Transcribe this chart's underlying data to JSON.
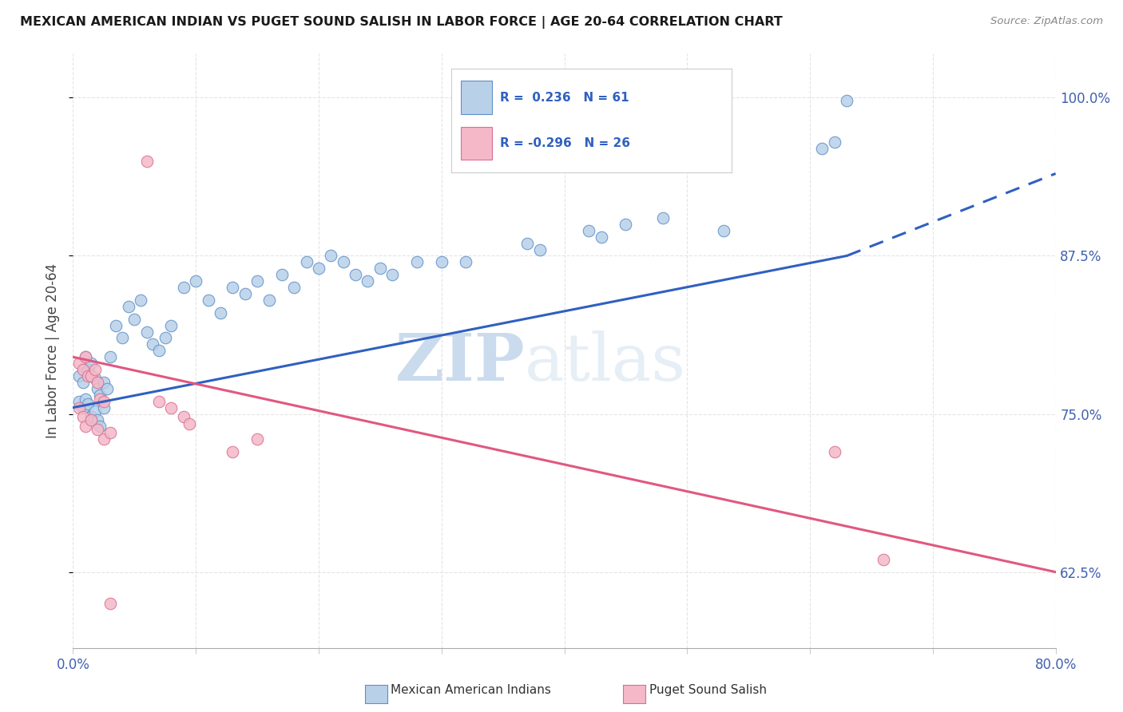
{
  "title": "MEXICAN AMERICAN INDIAN VS PUGET SOUND SALISH IN LABOR FORCE | AGE 20-64 CORRELATION CHART",
  "source": "Source: ZipAtlas.com",
  "ylabel": "In Labor Force | Age 20-64",
  "xlim": [
    0.0,
    0.8
  ],
  "ylim": [
    0.565,
    1.035
  ],
  "xticks": [
    0.0,
    0.1,
    0.2,
    0.3,
    0.4,
    0.5,
    0.6,
    0.7,
    0.8
  ],
  "yticks_right": [
    0.625,
    0.75,
    0.875,
    1.0
  ],
  "yticklabels_right": [
    "62.5%",
    "75.0%",
    "87.5%",
    "100.0%"
  ],
  "blue_face_color": "#b8d0e8",
  "blue_edge_color": "#6090c8",
  "pink_face_color": "#f4b8c8",
  "pink_edge_color": "#d87090",
  "blue_line_color": "#3060c0",
  "pink_line_color": "#e05880",
  "R_blue": 0.236,
  "N_blue": 61,
  "R_pink": -0.296,
  "N_pink": 26,
  "legend_label_blue": "Mexican American Indians",
  "legend_label_pink": "Puget Sound Salish",
  "watermark_zip": "ZIP",
  "watermark_atlas": "atlas",
  "blue_scatter_x": [
    0.005,
    0.008,
    0.01,
    0.012,
    0.015,
    0.018,
    0.02,
    0.022,
    0.025,
    0.028,
    0.005,
    0.008,
    0.01,
    0.012,
    0.015,
    0.018,
    0.02,
    0.022,
    0.025,
    0.03,
    0.035,
    0.04,
    0.045,
    0.05,
    0.055,
    0.06,
    0.065,
    0.07,
    0.075,
    0.08,
    0.09,
    0.1,
    0.11,
    0.12,
    0.13,
    0.14,
    0.15,
    0.16,
    0.17,
    0.18,
    0.19,
    0.2,
    0.21,
    0.22,
    0.23,
    0.24,
    0.25,
    0.26,
    0.3,
    0.32,
    0.38,
    0.42,
    0.43,
    0.53,
    0.61,
    0.62,
    0.63,
    0.37,
    0.28,
    0.45,
    0.48
  ],
  "blue_scatter_y": [
    0.78,
    0.775,
    0.795,
    0.785,
    0.79,
    0.778,
    0.77,
    0.765,
    0.775,
    0.77,
    0.76,
    0.755,
    0.762,
    0.758,
    0.748,
    0.752,
    0.745,
    0.74,
    0.755,
    0.795,
    0.82,
    0.81,
    0.835,
    0.825,
    0.84,
    0.815,
    0.805,
    0.8,
    0.81,
    0.82,
    0.85,
    0.855,
    0.84,
    0.83,
    0.85,
    0.845,
    0.855,
    0.84,
    0.86,
    0.85,
    0.87,
    0.865,
    0.875,
    0.87,
    0.86,
    0.855,
    0.865,
    0.86,
    0.87,
    0.87,
    0.88,
    0.895,
    0.89,
    0.895,
    0.96,
    0.965,
    0.998,
    0.885,
    0.87,
    0.9,
    0.905
  ],
  "pink_scatter_x": [
    0.005,
    0.008,
    0.01,
    0.012,
    0.015,
    0.018,
    0.02,
    0.022,
    0.025,
    0.005,
    0.008,
    0.01,
    0.015,
    0.02,
    0.025,
    0.03,
    0.06,
    0.07,
    0.08,
    0.09,
    0.095,
    0.13,
    0.15,
    0.62,
    0.66,
    0.03
  ],
  "pink_scatter_y": [
    0.79,
    0.785,
    0.795,
    0.78,
    0.78,
    0.785,
    0.775,
    0.762,
    0.76,
    0.755,
    0.748,
    0.74,
    0.745,
    0.738,
    0.73,
    0.735,
    0.95,
    0.76,
    0.755,
    0.748,
    0.742,
    0.72,
    0.73,
    0.72,
    0.635,
    0.6
  ],
  "background_color": "#ffffff",
  "grid_color": "#e4e4e4"
}
